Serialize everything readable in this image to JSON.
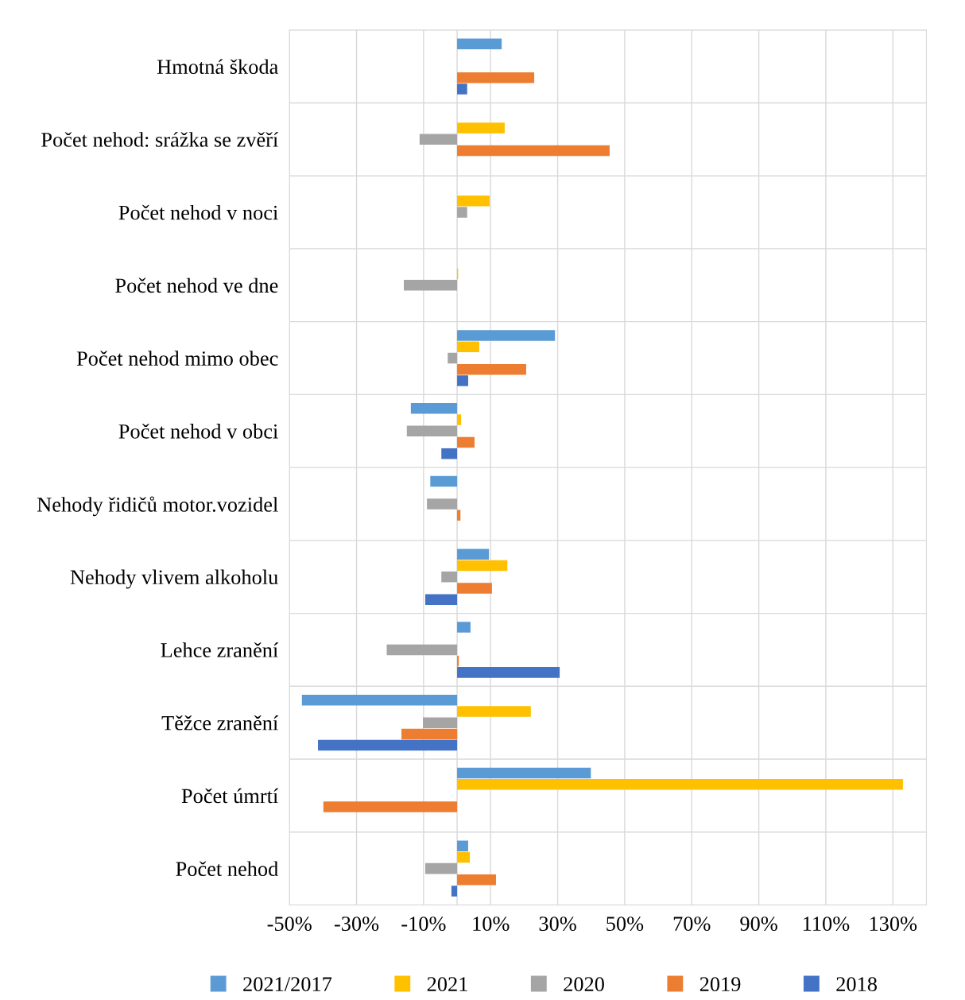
{
  "chart_data": {
    "type": "bar",
    "orientation": "horizontal",
    "categories": [
      "Hmotná škoda",
      "Počet nehod: srážka se zvěří",
      "Počet nehod v noci",
      "Počet nehod ve dne",
      "Počet nehod mimo obec",
      "Počet nehod v obci",
      "Nehody řidičů motor.vozidel",
      "Nehody vlivem alkoholu",
      "Lehce zranění",
      "Těžce zranění",
      "Počet úmrtí",
      "Počet nehod"
    ],
    "series": [
      {
        "name": "2021/2017",
        "color": "#5b9bd5",
        "values": [
          13.3,
          null,
          null,
          null,
          29.2,
          -13.8,
          -8,
          9.5,
          4,
          -46.3,
          39.9,
          3.3
        ]
      },
      {
        "name": "2021",
        "color": "#ffc000",
        "values": [
          null,
          14.2,
          9.7,
          0.3,
          6.6,
          1.2,
          null,
          15,
          null,
          22,
          133,
          3.8
        ]
      },
      {
        "name": "2020",
        "color": "#a5a5a5",
        "values": [
          null,
          -11.2,
          3,
          -15.9,
          -2.8,
          -15,
          -9,
          -4.7,
          -21,
          -10.2,
          null,
          -9.5
        ]
      },
      {
        "name": "2019",
        "color": "#ed7d31",
        "values": [
          23,
          45.5,
          null,
          null,
          20.6,
          5.2,
          1,
          10.4,
          0.5,
          -16.6,
          -39.9,
          11.6
        ]
      },
      {
        "name": "2018",
        "color": "#4472c4",
        "values": [
          3,
          null,
          null,
          null,
          3.3,
          -4.7,
          null,
          -9.5,
          30.6,
          -41.5,
          null,
          -1.7
        ]
      }
    ],
    "xlim": [
      -50,
      140
    ],
    "xticks": [
      {
        "value": -50,
        "label": "-50%"
      },
      {
        "value": -30,
        "label": "-30%"
      },
      {
        "value": -10,
        "label": "-10%"
      },
      {
        "value": 10,
        "label": "10%"
      },
      {
        "value": 30,
        "label": "30%"
      },
      {
        "value": 50,
        "label": "50%"
      },
      {
        "value": 70,
        "label": "70%"
      },
      {
        "value": 90,
        "label": "90%"
      },
      {
        "value": 110,
        "label": "110%"
      },
      {
        "value": 130,
        "label": "130%"
      }
    ],
    "grid": true,
    "legend": "bottom"
  }
}
